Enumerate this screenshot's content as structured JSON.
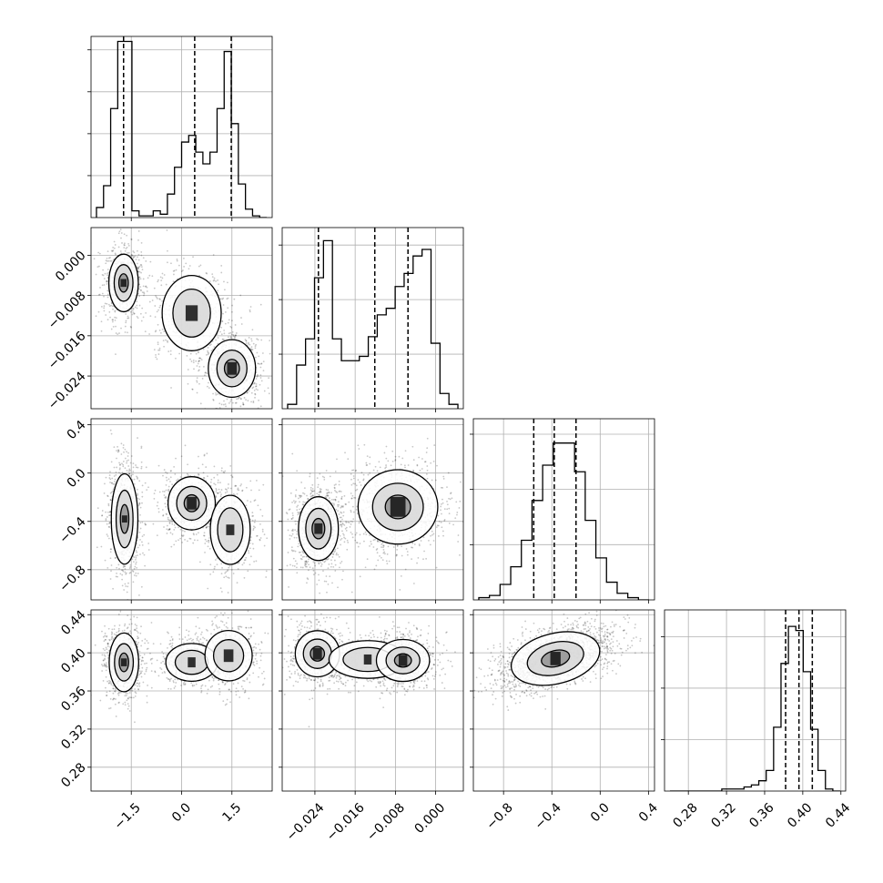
{
  "chart_data": {
    "type": "corner",
    "grid": true,
    "parameters": [
      {
        "range": [
          -2.7,
          2.7
        ],
        "ticks": [
          "−1.5",
          "0.0",
          "1.5"
        ],
        "tick_values": [
          -1.5,
          0.0,
          1.5
        ],
        "quantiles": [
          -1.73,
          0.39,
          1.48
        ],
        "histogram": [
          6,
          19,
          65,
          105,
          105,
          4,
          1,
          1,
          4,
          2,
          14,
          30,
          45,
          49,
          39,
          32,
          39,
          65,
          99,
          56,
          20,
          5,
          1,
          0
        ],
        "histogram_ymax": 108
      },
      {
        "range": [
          -0.0305,
          0.0055
        ],
        "ticks": [
          "−0.024",
          "−0.016",
          "−0.008",
          "0.000"
        ],
        "tick_values": [
          -0.024,
          -0.016,
          -0.008,
          0.0
        ],
        "quantiles": [
          -0.0233,
          -0.0121,
          -0.0055
        ],
        "histogram": [
          2,
          20,
          32,
          60,
          77,
          32,
          22,
          22,
          24,
          33,
          43,
          46,
          56,
          62,
          70,
          73,
          30,
          7,
          2
        ],
        "histogram_ymax": 83
      },
      {
        "range": [
          -1.05,
          0.45
        ],
        "ticks": [
          "0.4",
          "0.0",
          "−0.4",
          "−0.8"
        ],
        "tick_values": [
          0.4,
          0.0,
          -0.4,
          -0.8
        ],
        "quantiles": [
          -0.55,
          -0.38,
          -0.2
        ],
        "histogram": [
          1,
          2,
          7,
          15,
          27,
          45,
          61,
          71,
          71,
          58,
          36,
          19,
          8,
          3,
          1,
          0
        ],
        "histogram_ymax": 82
      },
      {
        "range": [
          0.255,
          0.445
        ],
        "ticks": [
          "0.28",
          "0.32",
          "0.36",
          "0.40",
          "0.44"
        ],
        "tick_values": [
          0.28,
          0.32,
          0.36,
          0.4,
          0.44
        ],
        "quantiles": [
          0.382,
          0.396,
          0.41
        ],
        "histogram": [
          0,
          0,
          0,
          0,
          0,
          0,
          0,
          1,
          1,
          1,
          2,
          3,
          5,
          10,
          31,
          62,
          80,
          78,
          58,
          30,
          10,
          1,
          0
        ],
        "histogram_ymax": 88
      }
    ],
    "pairs": [
      {
        "row": 1,
        "col": 0,
        "modes": [
          {
            "mx": -1.73,
            "my": -0.0055,
            "sx": 0.2,
            "sy": 0.0026,
            "w": 0.9
          },
          {
            "mx": 0.3,
            "my": -0.0115,
            "sx": 0.4,
            "sy": 0.0034,
            "w": 0.7
          },
          {
            "mx": 1.5,
            "my": -0.0225,
            "sx": 0.32,
            "sy": 0.0026,
            "w": 0.85
          }
        ]
      },
      {
        "row": 2,
        "col": 0,
        "modes": [
          {
            "mx": -1.7,
            "my": -0.38,
            "sx": 0.18,
            "sy": 0.17,
            "w": 1.0
          },
          {
            "mx": 0.3,
            "my": -0.25,
            "sx": 0.32,
            "sy": 0.1,
            "w": 0.8
          },
          {
            "mx": 1.45,
            "my": -0.47,
            "sx": 0.27,
            "sy": 0.13,
            "w": 0.75
          }
        ]
      },
      {
        "row": 3,
        "col": 0,
        "modes": [
          {
            "mx": -1.72,
            "my": 0.39,
            "sx": 0.2,
            "sy": 0.014,
            "w": 1.0
          },
          {
            "mx": 0.3,
            "my": 0.39,
            "sx": 0.35,
            "sy": 0.009,
            "w": 0.7
          },
          {
            "mx": 1.4,
            "my": 0.397,
            "sx": 0.32,
            "sy": 0.012,
            "w": 0.75
          }
        ]
      },
      {
        "row": 2,
        "col": 1,
        "modes": [
          {
            "mx": -0.0233,
            "my": -0.46,
            "sx": 0.0018,
            "sy": 0.12,
            "w": 1.0
          },
          {
            "mx": -0.0075,
            "my": -0.28,
            "sx": 0.0036,
            "sy": 0.14,
            "w": 1.0
          }
        ]
      },
      {
        "row": 3,
        "col": 1,
        "modes": [
          {
            "mx": -0.0235,
            "my": 0.399,
            "sx": 0.002,
            "sy": 0.011,
            "w": 0.9
          },
          {
            "mx": -0.0135,
            "my": 0.393,
            "sx": 0.0035,
            "sy": 0.009,
            "w": 0.6
          },
          {
            "mx": -0.0065,
            "my": 0.392,
            "sx": 0.0024,
            "sy": 0.01,
            "w": 1.0
          }
        ]
      },
      {
        "row": 3,
        "col": 2,
        "modes": [
          {
            "mx": -0.37,
            "my": 0.394,
            "sx": 0.17,
            "sy": 0.012,
            "w": 1.0,
            "rho": 0.5
          }
        ]
      }
    ]
  }
}
